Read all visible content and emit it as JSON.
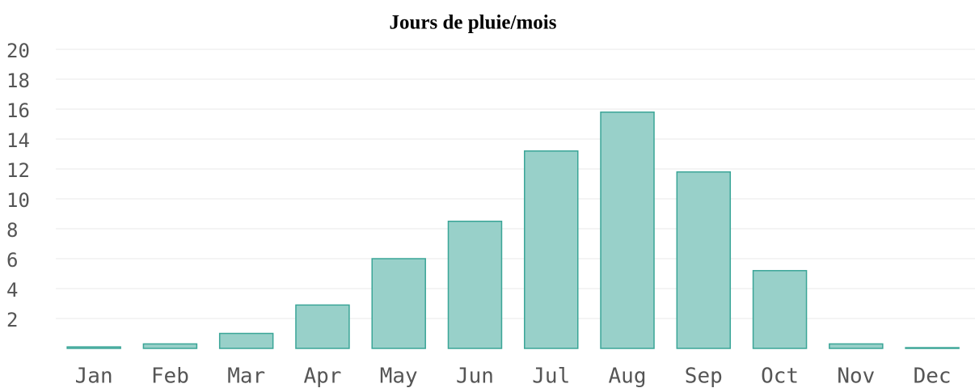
{
  "chart_data": {
    "type": "bar",
    "title": "Jours de pluie/mois",
    "categories": [
      "Jan",
      "Feb",
      "Mar",
      "Apr",
      "May",
      "Jun",
      "Jul",
      "Aug",
      "Sep",
      "Oct",
      "Nov",
      "Dec"
    ],
    "values": [
      0.1,
      0.3,
      1.0,
      2.9,
      6.0,
      8.5,
      13.2,
      15.8,
      11.8,
      5.2,
      0.3,
      0.05
    ],
    "color": "#98d0c9",
    "edge_color": "#3aa597",
    "ylim": [
      0,
      20
    ],
    "yticks": [
      2,
      4,
      6,
      8,
      10,
      12,
      14,
      16,
      18,
      20
    ],
    "grid": true
  }
}
